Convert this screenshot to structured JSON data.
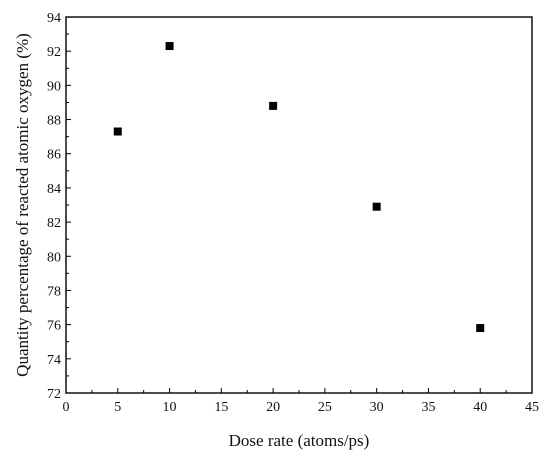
{
  "chart_data": {
    "type": "scatter",
    "title": "",
    "xlabel": "Dose rate (atoms/ps)",
    "ylabel": "Quantity percentage of reacted atomic oxygen (%)",
    "xlim": [
      0,
      45
    ],
    "ylim": [
      72,
      94
    ],
    "x_ticks": [
      0,
      5,
      10,
      15,
      20,
      25,
      30,
      35,
      40,
      45
    ],
    "y_ticks": [
      72,
      74,
      76,
      78,
      80,
      82,
      84,
      86,
      88,
      90,
      92,
      94
    ],
    "grid": false,
    "legend": "none",
    "marker": "square",
    "marker_color": "#000000",
    "series": [
      {
        "points": [
          {
            "x": 5,
            "y": 87.3
          },
          {
            "x": 10,
            "y": 92.3
          },
          {
            "x": 20,
            "y": 88.8
          },
          {
            "x": 30,
            "y": 82.9
          },
          {
            "x": 40,
            "y": 75.8
          }
        ]
      }
    ]
  }
}
